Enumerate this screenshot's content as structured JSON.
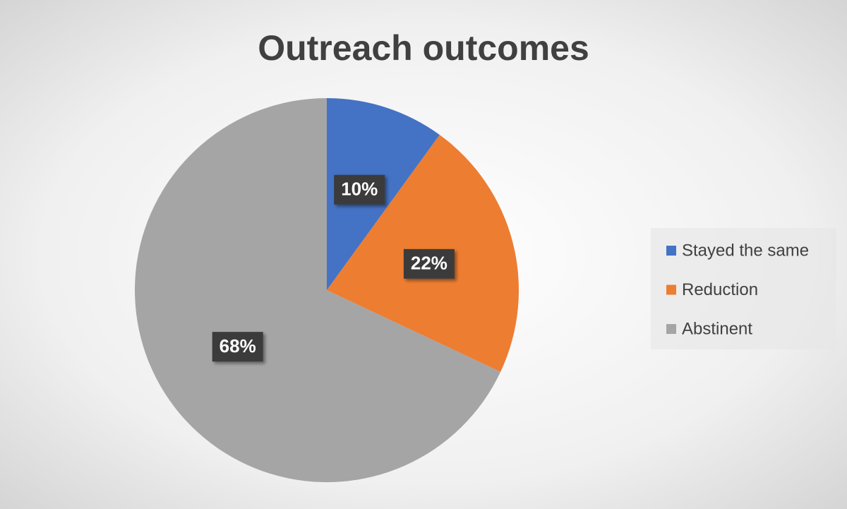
{
  "chart_data": {
    "type": "pie",
    "title": "Outreach outcomes",
    "categories": [
      "Stayed the same",
      "Reduction",
      "Abstinent"
    ],
    "values": [
      10,
      22,
      68
    ],
    "value_labels": [
      "10%",
      "22%",
      "68%"
    ],
    "colors": [
      "#4472c4",
      "#ed7d31",
      "#a5a5a5"
    ],
    "legend": "right"
  }
}
